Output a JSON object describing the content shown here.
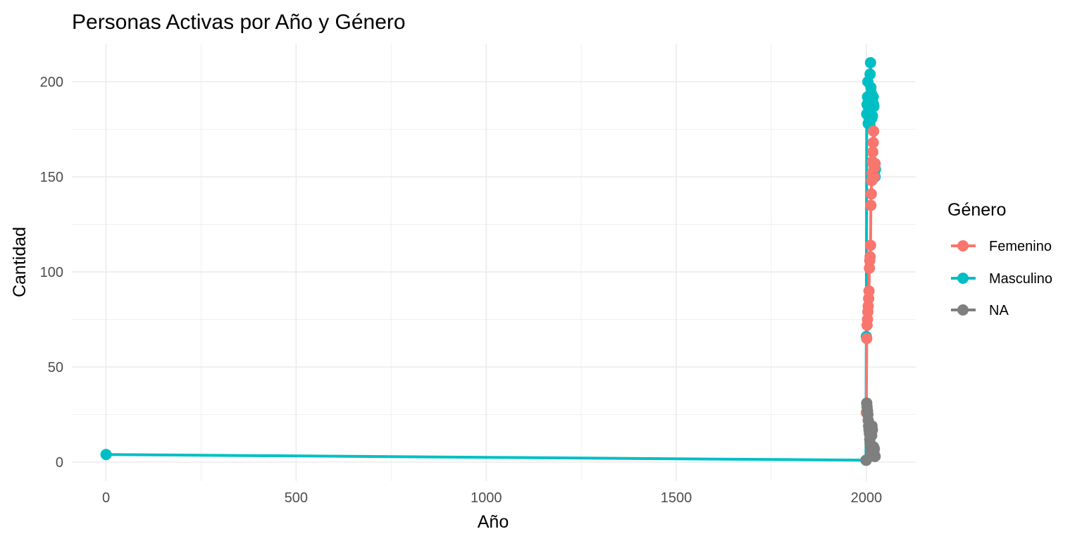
{
  "chart_data": {
    "type": "line",
    "title": "Personas Activas por Año y Género",
    "xlabel": "Año",
    "ylabel": "Cantidad",
    "xlim": [
      -90,
      2130
    ],
    "ylim": [
      -10,
      220
    ],
    "x_ticks": [
      0,
      500,
      1000,
      1500,
      2000
    ],
    "x_tick_labels": [
      "0",
      "500",
      "1000",
      "1500",
      "2000"
    ],
    "y_ticks": [
      0,
      50,
      100,
      150,
      200
    ],
    "y_tick_labels": [
      "0",
      "50",
      "100",
      "150",
      "200"
    ],
    "grid": true,
    "legend": {
      "title": "Género",
      "position": "right",
      "entries": [
        "Femenino",
        "Masculino",
        "NA"
      ]
    },
    "series": [
      {
        "name": "Femenino",
        "color": "#f8766d",
        "x": [
          2000,
          2001,
          2002,
          2003,
          2004,
          2005,
          2006,
          2007,
          2008,
          2009,
          2010,
          2011,
          2012,
          2013,
          2014,
          2015,
          2016,
          2017,
          2018,
          2019,
          2020,
          2021,
          2022,
          2023
        ],
        "y": [
          26,
          65,
          72,
          75,
          79,
          82,
          86,
          90,
          102,
          106,
          108,
          114,
          135,
          141,
          148,
          152,
          158,
          163,
          168,
          174,
          156,
          150,
          155,
          157
        ]
      },
      {
        "name": "Masculino",
        "color": "#00bfc4",
        "x": [
          0,
          1999,
          2000,
          2001,
          2002,
          2003,
          2004,
          2005,
          2006,
          2007,
          2008,
          2009,
          2010,
          2011,
          2012,
          2013,
          2014,
          2015,
          2016,
          2017,
          2018,
          2019,
          2020,
          2021,
          2022,
          2023,
          2024
        ],
        "y": [
          4,
          1,
          66,
          183,
          188,
          192,
          200,
          178,
          185,
          181,
          190,
          193,
          204,
          210,
          197,
          194,
          186,
          181,
          182,
          189,
          192,
          188,
          187,
          151,
          153,
          150,
          154
        ]
      },
      {
        "name": "NA",
        "color": "#7f7f7f",
        "x": [
          2000,
          2001,
          2002,
          2003,
          2004,
          2005,
          2006,
          2007,
          2008,
          2009,
          2010,
          2011,
          2012,
          2013,
          2014,
          2015,
          2016,
          2017,
          2018,
          2019,
          2020,
          2021,
          2022,
          2023
        ],
        "y": [
          1,
          31,
          29,
          27,
          25,
          22,
          19,
          17,
          15,
          12,
          10,
          8,
          18,
          16,
          14,
          19,
          17,
          6,
          4,
          8,
          5,
          7,
          3,
          3
        ]
      }
    ]
  }
}
